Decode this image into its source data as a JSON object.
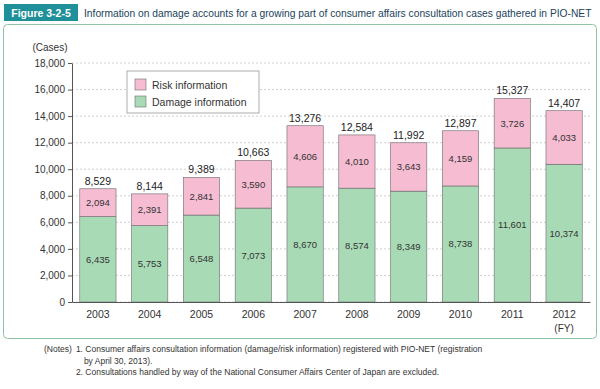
{
  "chart_data": {
    "type": "bar",
    "figure_number": "Figure 3-2-5",
    "title": "Information on damage accounts for a growing part of consumer affairs consultation cases gathered in PIO-NET",
    "y_label": "(Cases)",
    "x_label": "(FY)",
    "stacked": true,
    "data_labels": true,
    "grid": true,
    "legend": "top-left",
    "categories": [
      "2003",
      "2004",
      "2005",
      "2006",
      "2007",
      "2008",
      "2009",
      "2010",
      "2011",
      "2012"
    ],
    "series": [
      {
        "name": "Damage information",
        "color": "#a8dab5",
        "values": [
          6435,
          5753,
          6548,
          7073,
          8670,
          8574,
          8349,
          8738,
          11601,
          10374
        ],
        "value_labels": [
          "6,435",
          "5,753",
          "6,548",
          "7,073",
          "8,670",
          "8,574",
          "8,349",
          "8,738",
          "11,601",
          "10,374"
        ]
      },
      {
        "name": "Risk information",
        "color": "#f5bcd2",
        "values": [
          2094,
          2391,
          2841,
          3590,
          4606,
          4010,
          3643,
          4159,
          3726,
          4033
        ],
        "value_labels": [
          "2,094",
          "2,391",
          "2,841",
          "3,590",
          "4,606",
          "4,010",
          "3,643",
          "4,159",
          "3,726",
          "4,033"
        ]
      }
    ],
    "totals": [
      8529,
      8144,
      9389,
      10663,
      13276,
      12584,
      11992,
      12897,
      15327,
      14407
    ],
    "total_labels": [
      "8,529",
      "8,144",
      "9,389",
      "10,663",
      "13,276",
      "12,584",
      "11,992",
      "12,897",
      "15,327",
      "14,407"
    ],
    "ylim": [
      0,
      18000
    ],
    "yticks": [
      0,
      {
        "value": 2000,
        "label": "2,000"
      },
      {
        "value": 4000,
        "label": "4,000"
      },
      {
        "value": 6000,
        "label": "6,000"
      },
      {
        "value": 8000,
        "label": "8,000"
      },
      {
        "value": 10000,
        "label": "10,000"
      },
      {
        "value": 12000,
        "label": "12,000"
      },
      {
        "value": 14000,
        "label": "14,000"
      },
      {
        "value": 16000,
        "label": "16,000"
      },
      {
        "value": 18000,
        "label": "18,000"
      }
    ],
    "notes_label": "(Notes)",
    "notes": [
      "1. Consumer affairs consultation information (damage/risk information) registered with PIO-NET (registration",
      "by April 30, 2013).",
      "2. Consultations handled by way of the National Consumer Affairs Center of Japan  are excluded."
    ]
  }
}
